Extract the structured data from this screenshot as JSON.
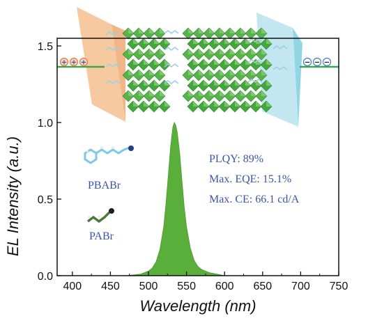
{
  "chart_data": {
    "type": "area",
    "xlabel": "Wavelength (nm)",
    "ylabel": "EL Intensity (a.u.)",
    "xlim": [
      380,
      750
    ],
    "ylim": [
      0,
      1.55
    ],
    "xticks": [
      "400",
      "450",
      "500",
      "550",
      "600",
      "650",
      "700",
      "750"
    ],
    "yticks": [
      "0.0",
      "0.5",
      "1.0",
      "1.5"
    ],
    "grid": false,
    "series": [
      {
        "color": "#5aae3a",
        "x": [
          470,
          480,
          490,
          500,
          505,
          510,
          515,
          520,
          523,
          526,
          529,
          532,
          534,
          536,
          538,
          541,
          544,
          547,
          550,
          555,
          560,
          565,
          570,
          580,
          590,
          600
        ],
        "y": [
          0.0,
          0.005,
          0.01,
          0.03,
          0.05,
          0.09,
          0.17,
          0.32,
          0.47,
          0.65,
          0.84,
          0.97,
          1.0,
          0.98,
          0.93,
          0.8,
          0.62,
          0.45,
          0.32,
          0.18,
          0.1,
          0.06,
          0.04,
          0.02,
          0.01,
          0.0
        ]
      }
    ],
    "annotations": [
      "PLQY: 89%",
      "Max. EQE: 15.1%",
      "Max. CE: 66.1 cd/A"
    ],
    "molecule_labels": [
      "PBABr",
      "PABr"
    ]
  },
  "device": {
    "anode_charges": [
      "+",
      "+",
      "+"
    ],
    "cathode_charges": [
      "−",
      "−",
      "−"
    ]
  },
  "colors": {
    "peak_fill": "#5aae3a",
    "text_blue": "#3b55a6",
    "anode": "#f5b57a",
    "cathode": "#9fd8e8",
    "octahedra": "#43a83b",
    "electrode_line": "#3ca44a"
  }
}
